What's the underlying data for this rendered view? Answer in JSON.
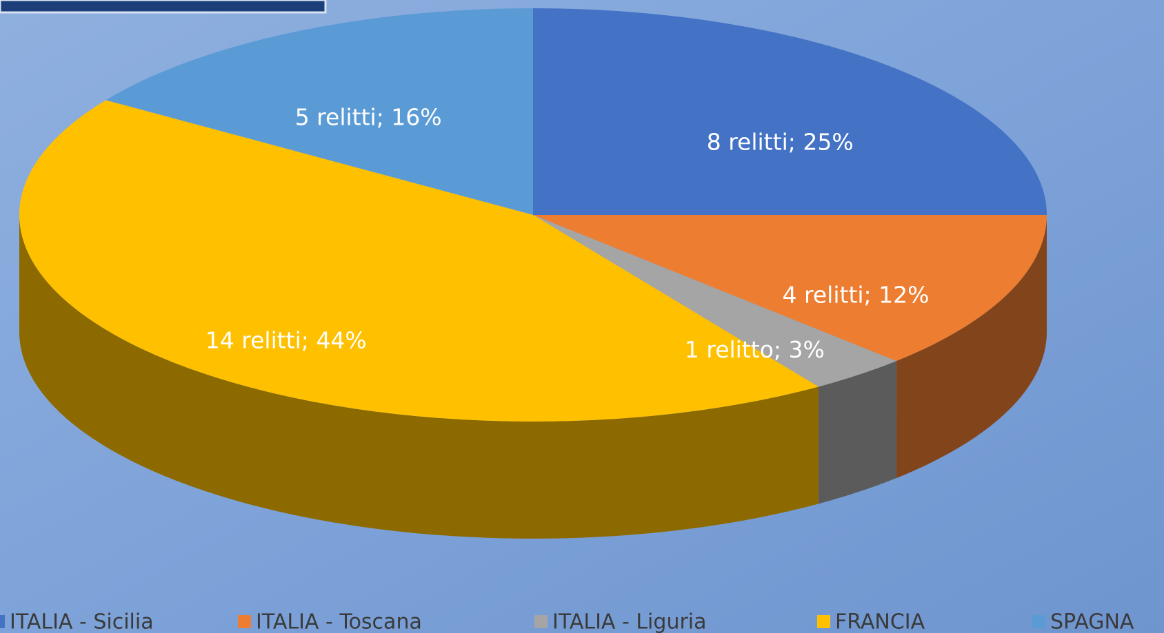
{
  "chart_data": {
    "type": "pie3d",
    "categories": [
      "ITALIA - Sicilia",
      "ITALIA - Toscana",
      "ITALIA - Liguria",
      "FRANCIA",
      "SPAGNA"
    ],
    "values": [
      8,
      4,
      1,
      14,
      5
    ],
    "value_labels": [
      "8 relitti; 25%",
      "4 relitti; 12%",
      "1 relitto; 3%",
      "14 relitti; 44%",
      "5 relitti; 16%"
    ],
    "colors": [
      "#4472c4",
      "#ed7d31",
      "#a5a5a5",
      "#ffc000",
      "#5b9bd5"
    ],
    "legend": "bottom"
  }
}
